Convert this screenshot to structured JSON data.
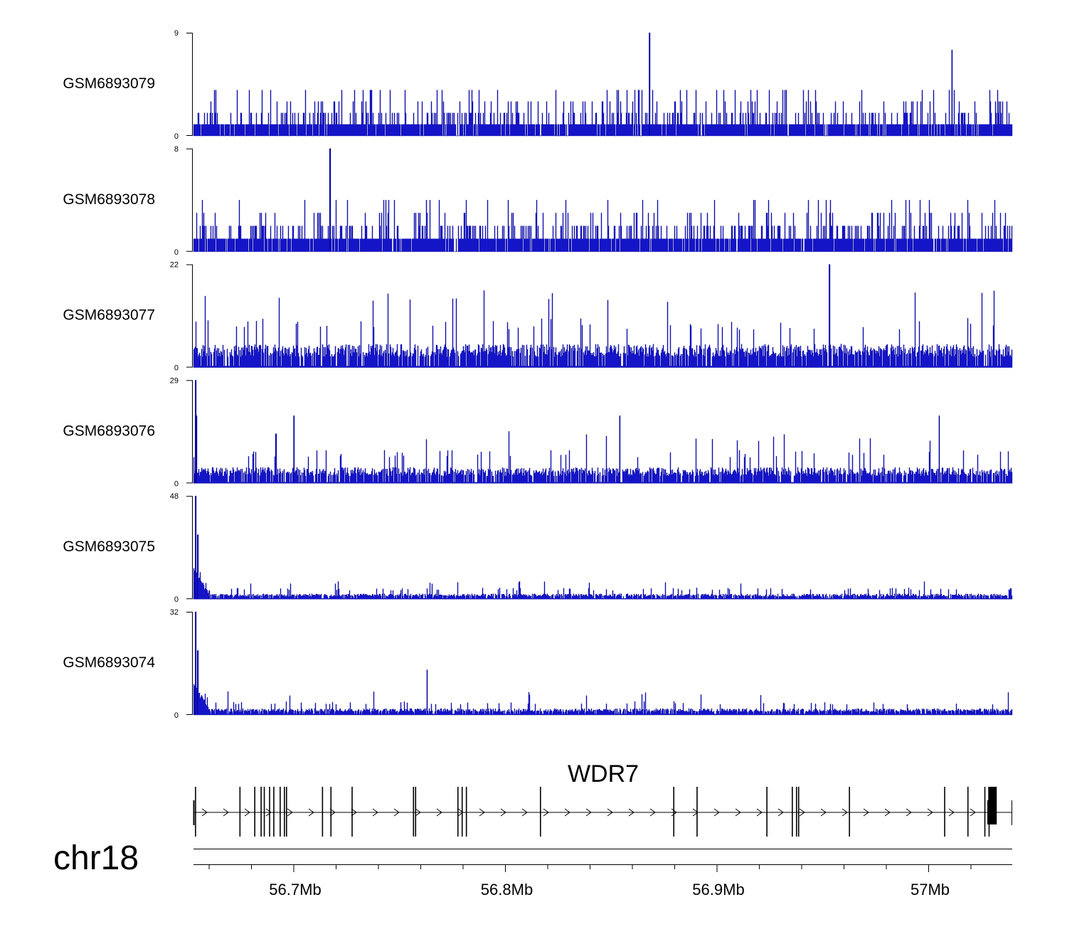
{
  "chart_data": {
    "type": "genome-browser-coverage",
    "chromosome": "chr18",
    "gene": "WDR7",
    "strand": "+",
    "region_mb": [
      56.653,
      57.04
    ],
    "x_ticks": [
      {
        "value": 56.7,
        "label": "56.7Mb"
      },
      {
        "value": 56.8,
        "label": "56.8Mb"
      },
      {
        "value": 56.9,
        "label": "56.9Mb"
      },
      {
        "value": 57.0,
        "label": "57Mb"
      }
    ],
    "tracks": [
      {
        "name": "GSM6893079",
        "ymin": 0,
        "ymax": 9,
        "ymin_label": "0",
        "ymax_label": "9",
        "color": "#1515c8",
        "profile": "flat",
        "base": 1,
        "levels": [
          2,
          3,
          4
        ],
        "peaks": [
          {
            "x": 56.868,
            "y": 9
          },
          {
            "x": 57.011,
            "y": 7.5
          }
        ]
      },
      {
        "name": "GSM6893078",
        "ymin": 0,
        "ymax": 8,
        "ymin_label": "0",
        "ymax_label": "8",
        "color": "#1515c8",
        "profile": "flat",
        "base": 1,
        "levels": [
          2,
          3,
          4
        ],
        "peaks": [
          {
            "x": 56.717,
            "y": 8
          }
        ]
      },
      {
        "name": "GSM6893077",
        "ymin": 0,
        "ymax": 22,
        "ymin_label": "0",
        "ymax_label": "22",
        "color": "#1515c8",
        "profile": "spiky",
        "base": 5,
        "levels": [
          10,
          16
        ],
        "peaks": [
          {
            "x": 56.953,
            "y": 22
          }
        ]
      },
      {
        "name": "GSM6893076",
        "ymin": 0,
        "ymax": 29,
        "ymin_label": "0",
        "ymax_label": "29",
        "color": "#1515c8",
        "profile": "spiky-edge",
        "base": 4.5,
        "levels": [
          9,
          14
        ],
        "peaks": [
          {
            "x": 56.6535,
            "y": 29
          },
          {
            "x": 56.654,
            "y": 19
          },
          {
            "x": 56.7,
            "y": 19
          },
          {
            "x": 56.854,
            "y": 19
          },
          {
            "x": 57.005,
            "y": 19
          }
        ]
      },
      {
        "name": "GSM6893075",
        "ymin": 0,
        "ymax": 48,
        "ymin_label": "0",
        "ymax_label": "48",
        "color": "#1515c8",
        "profile": "edge-decay",
        "base": 2.5,
        "levels": [
          5,
          8
        ],
        "peaks": [
          {
            "x": 56.6535,
            "y": 48
          },
          {
            "x": 56.6545,
            "y": 30
          },
          {
            "x": 56.66,
            "y": 4
          }
        ]
      },
      {
        "name": "GSM6893074",
        "ymin": 0,
        "ymax": 32,
        "ymin_label": "0",
        "ymax_label": "32",
        "color": "#1515c8",
        "profile": "edge-decay",
        "base": 2,
        "levels": [
          4,
          7
        ],
        "peaks": [
          {
            "x": 56.6535,
            "y": 32
          },
          {
            "x": 56.6545,
            "y": 20
          },
          {
            "x": 56.763,
            "y": 14
          }
        ]
      }
    ],
    "exons_mb": [
      56.6535,
      56.6745,
      56.6815,
      56.6845,
      56.686,
      56.6885,
      56.6905,
      56.6935,
      56.6955,
      56.6965,
      56.7135,
      56.7175,
      56.7275,
      56.7565,
      56.7575,
      56.7775,
      56.7795,
      56.7815,
      56.8165,
      56.8795,
      56.8905,
      56.9235,
      56.9355,
      56.9375,
      56.9385,
      56.9625,
      57.0075,
      57.0185,
      57.0265,
      57.0285,
      57.0295,
      57.0305
    ]
  }
}
